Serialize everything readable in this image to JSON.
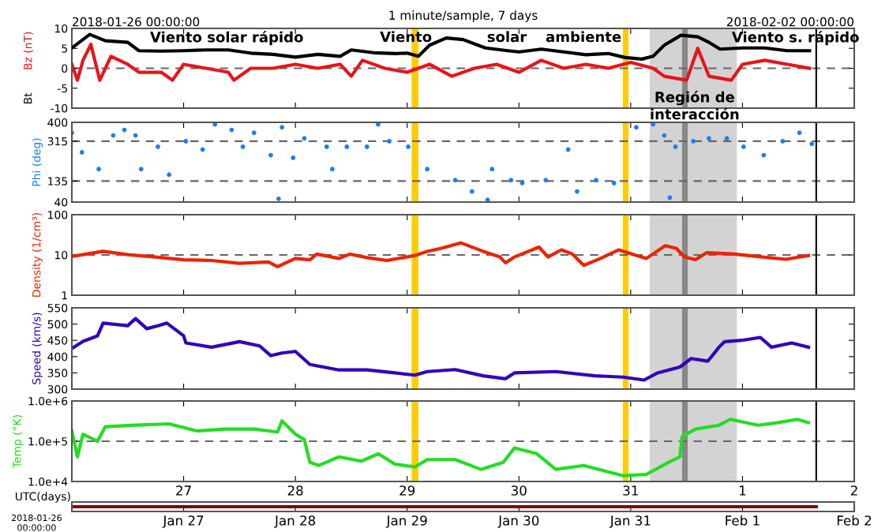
{
  "chart_data": [
    {
      "type": "line",
      "title": "1 minute/sample, 7 days",
      "xlim": [
        "2018-01-26",
        "2018-02-02"
      ],
      "xticks": [
        "2018-01-26",
        "2018-01-27",
        "2018-01-28",
        "2018-01-29",
        "2018-01-30",
        "2018-01-31",
        "2018-02-01",
        "2018-02-02"
      ],
      "ylim": [
        -10,
        10
      ],
      "yticks": [
        -10,
        -5,
        0,
        5,
        10
      ],
      "tick_labels": "y",
      "grid": false,
      "series": [
        {
          "name": "Bz (nT)",
          "color": "#e8141a",
          "x": [
            "2018-01-26T00:00",
            "2018-01-26T01:12",
            "2018-01-26T02:24",
            "2018-01-26T04:05",
            "2018-01-26T06:00",
            "2018-01-26T08:24",
            "2018-01-26T12:00",
            "2018-01-26T14:24",
            "2018-01-26T19:12",
            "2018-01-26T21:36",
            "2018-01-27T00:00",
            "2018-01-27T04:48",
            "2018-01-27T09:36",
            "2018-01-27T10:48",
            "2018-01-27T14:24",
            "2018-01-27T19:12",
            "2018-01-28T00:00",
            "2018-01-28T04:48",
            "2018-01-28T09:36",
            "2018-01-28T12:00",
            "2018-01-28T14:24",
            "2018-01-28T19:12",
            "2018-01-29T00:00",
            "2018-01-29T04:48",
            "2018-01-29T09:36",
            "2018-01-29T14:24",
            "2018-01-29T19:12",
            "2018-01-30T00:00",
            "2018-01-30T04:48",
            "2018-01-30T09:36",
            "2018-01-30T14:24",
            "2018-01-30T19:12",
            "2018-01-31T00:00",
            "2018-01-31T04:48",
            "2018-01-31T07:12",
            "2018-01-31T12:00",
            "2018-01-31T14:24",
            "2018-01-31T16:48",
            "2018-01-31T21:36",
            "2018-02-01T00:00",
            "2018-02-01T04:48",
            "2018-02-01T09:36",
            "2018-02-01T14:24"
          ],
          "values": [
            1,
            -3,
            2,
            6,
            -3,
            3,
            1,
            -1,
            -1,
            -3,
            1,
            0,
            -1,
            -3,
            0,
            0,
            1,
            0,
            1,
            -2,
            2,
            0,
            -1,
            1,
            -2,
            0,
            1,
            -1,
            2,
            0,
            1,
            0,
            1.5,
            0,
            -2,
            -3,
            5,
            -2,
            -3,
            1,
            2,
            1,
            0
          ]
        },
        {
          "name": "Bt",
          "color": "#000000",
          "x": [
            "2018-01-26T00:00",
            "2018-01-26T03:50",
            "2018-01-26T07:12",
            "2018-01-26T12:00",
            "2018-01-26T14:24",
            "2018-01-26T19:12",
            "2018-01-27T00:00",
            "2018-01-27T04:48",
            "2018-01-27T09:36",
            "2018-01-27T14:24",
            "2018-01-27T19:12",
            "2018-01-28T00:00",
            "2018-01-28T04:48",
            "2018-01-28T09:36",
            "2018-01-28T12:00",
            "2018-01-28T16:48",
            "2018-01-28T21:36",
            "2018-01-29T00:00",
            "2018-01-29T02:24",
            "2018-01-29T04:48",
            "2018-01-29T08:24",
            "2018-01-29T12:00",
            "2018-01-29T16:48",
            "2018-01-29T21:36",
            "2018-01-30T00:00",
            "2018-01-30T04:48",
            "2018-01-30T09:36",
            "2018-01-30T14:24",
            "2018-01-30T19:12",
            "2018-01-30T22:48",
            "2018-01-31T02:24",
            "2018-01-31T04:48",
            "2018-01-31T07:12",
            "2018-01-31T10:48",
            "2018-01-31T14:24",
            "2018-01-31T16:48",
            "2018-01-31T19:12",
            "2018-02-01T00:00",
            "2018-02-01T04:48",
            "2018-02-01T09:36",
            "2018-02-01T14:24"
          ],
          "values": [
            5.1,
            8.5,
            6.9,
            6.5,
            4.4,
            4.3,
            4.4,
            4.6,
            4.6,
            3.8,
            3.5,
            2.8,
            3.5,
            3.0,
            4.6,
            3.9,
            3.7,
            3.8,
            3.0,
            5.8,
            7.6,
            7.2,
            5.1,
            4.4,
            4.1,
            4.8,
            4.1,
            3.4,
            3.7,
            2.7,
            2.3,
            3.0,
            5.8,
            8.3,
            7.9,
            6.5,
            4.8,
            5.1,
            5.1,
            4.4,
            4.4
          ]
        }
      ],
      "ref_lines": [
        {
          "axis": "y",
          "value": 0,
          "color": "#666666",
          "line_style": "dashed"
        },
        {
          "axis": "x",
          "value": "2018-02-01T15:50",
          "color": "#000000",
          "line_style": "solid"
        }
      ],
      "bands": [
        {
          "axis": "x",
          "from": "2018-01-29T00:58",
          "to": "2018-01-29T02:24",
          "color": "#ffcc00"
        },
        {
          "axis": "x",
          "from": "2018-01-30T22:19",
          "to": "2018-01-30T23:31",
          "color": "#ffcc00"
        },
        {
          "axis": "x",
          "from": "2018-01-31T04:05",
          "to": "2018-01-31T22:48",
          "color": "#d3d3d3"
        },
        {
          "axis": "x",
          "from": "2018-01-31T11:02",
          "to": "2018-01-31T12:14",
          "color": "#888888"
        }
      ],
      "annotations": [
        "2018-01-26 00:00:00",
        "2018-02-02 00:00:00",
        "Viento solar rápido",
        "Viento",
        "solar",
        "ambiente",
        "Viento s. rápido",
        "Región de\ninteracción"
      ]
    },
    {
      "type": "scatter",
      "ylabel": "Phi (deg)",
      "xlim": [
        "2018-01-26",
        "2018-02-02"
      ],
      "xticks": [
        "2018-01-26",
        "2018-01-27",
        "2018-01-28",
        "2018-01-29",
        "2018-01-30",
        "2018-01-31",
        "2018-02-01",
        "2018-02-02"
      ],
      "ylim": [
        40,
        400
      ],
      "yticks": [
        40,
        135,
        315,
        400
      ],
      "tick_labels": "y",
      "grid": false,
      "series": [
        {
          "color": "#1a7fef",
          "x": [
            "2018-01-26T00:00",
            "2018-01-26T02:10",
            "2018-01-26T05:46",
            "2018-01-26T08:53",
            "2018-01-26T11:17",
            "2018-01-26T13:41",
            "2018-01-26T14:53",
            "2018-01-26T18:29",
            "2018-01-26T20:53",
            "2018-01-27T00:29",
            "2018-01-27T04:05",
            "2018-01-27T06:43",
            "2018-01-27T10:19",
            "2018-01-27T12:43",
            "2018-01-27T15:07",
            "2018-01-27T18:43",
            "2018-01-27T20:24",
            "2018-01-27T21:07",
            "2018-01-27T23:31",
            "2018-01-28T01:55",
            "2018-01-28T06:43",
            "2018-01-28T07:55",
            "2018-01-28T11:02",
            "2018-01-28T15:22",
            "2018-01-28T17:46",
            "2018-01-28T20:10",
            "2018-01-29T00:14",
            "2018-01-29T04:19",
            "2018-01-29T10:19",
            "2018-01-29T13:55",
            "2018-01-29T17:17",
            "2018-01-29T18:14",
            "2018-01-29T22:19",
            "2018-01-30T00:43",
            "2018-01-30T05:46",
            "2018-01-30T10:34",
            "2018-01-30T12:29",
            "2018-01-30T16:34",
            "2018-01-30T20:24",
            "2018-01-31T01:12",
            "2018-01-31T04:48",
            "2018-01-31T07:12",
            "2018-01-31T08:24",
            "2018-01-31T09:36",
            "2018-01-31T13:26",
            "2018-01-31T16:48",
            "2018-01-31T20:38",
            "2018-02-01T00:14",
            "2018-02-01T04:34",
            "2018-02-01T08:38",
            "2018-02-01T12:14",
            "2018-02-01T14:53"
          ],
          "values": [
            353,
            265,
            189,
            341,
            366,
            341,
            189,
            290,
            164,
            315,
            277,
            391,
            366,
            290,
            353,
            252,
            55,
            378,
            240,
            328,
            290,
            189,
            290,
            290,
            391,
            315,
            290,
            189,
            139,
            88,
            50,
            189,
            139,
            126,
            139,
            277,
            88,
            139,
            126,
            378,
            391,
            341,
            60,
            290,
            315,
            328,
            328,
            290,
            252,
            315,
            353,
            303
          ]
        }
      ],
      "ref_lines": [
        {
          "axis": "y",
          "value": 135,
          "color": "#666666",
          "line_style": "dashed"
        },
        {
          "axis": "y",
          "value": 315,
          "color": "#666666",
          "line_style": "dashed"
        },
        {
          "axis": "x",
          "value": "2018-02-01T15:50",
          "color": "#000000",
          "line_style": "solid"
        }
      ],
      "bands": [
        {
          "axis": "x",
          "from": "2018-01-29T00:58",
          "to": "2018-01-29T02:24",
          "color": "#ffcc00"
        },
        {
          "axis": "x",
          "from": "2018-01-30T22:19",
          "to": "2018-01-30T23:31",
          "color": "#ffcc00"
        },
        {
          "axis": "x",
          "from": "2018-01-31T04:05",
          "to": "2018-01-31T22:48",
          "color": "#d3d3d3"
        },
        {
          "axis": "x",
          "from": "2018-01-31T11:02",
          "to": "2018-01-31T12:14",
          "color": "#888888"
        }
      ]
    },
    {
      "type": "line",
      "ylabel": "Density (1/cm³)",
      "log": "y",
      "xlim": [
        "2018-01-26",
        "2018-02-02"
      ],
      "xticks": [
        "2018-01-26",
        "2018-01-27",
        "2018-01-28",
        "2018-01-29",
        "2018-01-30",
        "2018-01-31",
        "2018-02-01",
        "2018-02-02"
      ],
      "ylim": [
        1,
        100
      ],
      "yticks": [
        1,
        10,
        100
      ],
      "tick_labels": "y",
      "grid": false,
      "series": [
        {
          "color": "#ee2200",
          "x": [
            "2018-01-26T00:00",
            "2018-01-26T06:43",
            "2018-01-26T12:00",
            "2018-01-26T18:00",
            "2018-01-27T00:00",
            "2018-01-27T06:00",
            "2018-01-27T12:00",
            "2018-01-27T18:14",
            "2018-01-27T20:10",
            "2018-01-28T00:00",
            "2018-01-28T03:07",
            "2018-01-28T04:34",
            "2018-01-28T09:22",
            "2018-01-28T11:46",
            "2018-01-28T15:22",
            "2018-01-28T19:41",
            "2018-01-29T01:41",
            "2018-01-29T04:19",
            "2018-01-29T07:12",
            "2018-01-29T11:31",
            "2018-01-29T16:19",
            "2018-01-29T19:55",
            "2018-01-29T21:07",
            "2018-01-29T23:02",
            "2018-01-30T04:19",
            "2018-01-30T06:14",
            "2018-01-30T09:07",
            "2018-01-30T11:31",
            "2018-01-30T13:55",
            "2018-01-30T17:31",
            "2018-01-30T21:22",
            "2018-01-31T03:22",
            "2018-01-31T07:26",
            "2018-01-31T09:50",
            "2018-01-31T11:31",
            "2018-01-31T13:55",
            "2018-01-31T16:19",
            "2018-01-31T22:19",
            "2018-02-01T04:19",
            "2018-02-01T09:22",
            "2018-02-01T14:10"
          ],
          "values": [
            9.2,
            12.3,
            10.2,
            8.9,
            7.6,
            7.3,
            6.2,
            6.7,
            5.1,
            8.2,
            7.6,
            10.5,
            8.2,
            10.5,
            8.6,
            7.3,
            9.7,
            12.3,
            14.5,
            20,
            12.3,
            8.9,
            6.4,
            8.9,
            15.7,
            8.9,
            13.4,
            10.5,
            5.5,
            8.2,
            13.4,
            8.2,
            17,
            14.5,
            8.9,
            7.6,
            11.4,
            10.5,
            8.9,
            7.8,
            9.7
          ]
        }
      ],
      "ref_lines": [
        {
          "axis": "y",
          "value": 10,
          "color": "#666666",
          "line_style": "dashed"
        },
        {
          "axis": "x",
          "value": "2018-02-01T15:50",
          "color": "#000000",
          "line_style": "solid"
        }
      ],
      "bands": [
        {
          "axis": "x",
          "from": "2018-01-29T00:58",
          "to": "2018-01-29T02:24",
          "color": "#ffcc00"
        },
        {
          "axis": "x",
          "from": "2018-01-30T22:19",
          "to": "2018-01-30T23:31",
          "color": "#ffcc00"
        },
        {
          "axis": "x",
          "from": "2018-01-31T04:05",
          "to": "2018-01-31T22:48",
          "color": "#d3d3d3"
        },
        {
          "axis": "x",
          "from": "2018-01-31T11:02",
          "to": "2018-01-31T12:14",
          "color": "#888888"
        }
      ]
    },
    {
      "type": "line",
      "ylabel": "Speed (km/s)",
      "xlim": [
        "2018-01-26",
        "2018-02-02"
      ],
      "xticks": [
        "2018-01-26",
        "2018-01-27",
        "2018-01-28",
        "2018-01-29",
        "2018-01-30",
        "2018-01-31",
        "2018-02-01",
        "2018-02-02"
      ],
      "ylim": [
        300,
        550
      ],
      "yticks": [
        300,
        350,
        400,
        450,
        500,
        550
      ],
      "tick_labels": "y",
      "grid": false,
      "series": [
        {
          "color": "#3300bb",
          "x": [
            "2018-01-26T00:00",
            "2018-01-26T02:24",
            "2018-01-26T05:31",
            "2018-01-26T06:43",
            "2018-01-26T12:00",
            "2018-01-26T13:41",
            "2018-01-26T16:05",
            "2018-01-26T18:29",
            "2018-01-26T20:24",
            "2018-01-27T00:00",
            "2018-01-27T00:29",
            "2018-01-27T06:00",
            "2018-01-27T12:00",
            "2018-01-27T16:19",
            "2018-01-27T18:43",
            "2018-01-27T21:07",
            "2018-01-28T00:00",
            "2018-01-28T03:07",
            "2018-01-28T09:22",
            "2018-01-28T15:22",
            "2018-01-28T21:22",
            "2018-01-29T01:41",
            "2018-01-29T04:19",
            "2018-01-29T10:19",
            "2018-01-29T16:19",
            "2018-01-29T21:07",
            "2018-01-29T23:02",
            "2018-01-30T07:55",
            "2018-01-30T16:19",
            "2018-01-30T22:19",
            "2018-01-31T02:53",
            "2018-01-31T05:46",
            "2018-01-31T10:34",
            "2018-01-31T12:58",
            "2018-01-31T16:34",
            "2018-01-31T18:58",
            "2018-01-31T20:10",
            "2018-01-31T23:46",
            "2018-02-01T03:50",
            "2018-02-01T06:14",
            "2018-02-01T10:34",
            "2018-02-01T14:10"
          ],
          "values": [
            425,
            447,
            464,
            503,
            495,
            517,
            486,
            495,
            503,
            464,
            442,
            429,
            446,
            433,
            403,
            411,
            416,
            376,
            359,
            359,
            350,
            343,
            354,
            360,
            341,
            332,
            350,
            354,
            341,
            337,
            328,
            350,
            368,
            394,
            386,
            429,
            446,
            450,
            459,
            429,
            442,
            429
          ]
        }
      ],
      "ref_lines": [
        {
          "axis": "x",
          "value": "2018-02-01T15:50",
          "color": "#000000",
          "line_style": "solid"
        }
      ],
      "bands": [
        {
          "axis": "x",
          "from": "2018-01-29T00:58",
          "to": "2018-01-29T02:24",
          "color": "#ffcc00"
        },
        {
          "axis": "x",
          "from": "2018-01-30T22:19",
          "to": "2018-01-30T23:31",
          "color": "#ffcc00"
        },
        {
          "axis": "x",
          "from": "2018-01-31T04:05",
          "to": "2018-01-31T22:48",
          "color": "#d3d3d3"
        },
        {
          "axis": "x",
          "from": "2018-01-31T11:02",
          "to": "2018-01-31T12:14",
          "color": "#888888"
        }
      ]
    },
    {
      "type": "line",
      "ylabel": "Temp (°K)",
      "xlabel": "UTC(days)",
      "log": "y",
      "xlim": [
        "2018-01-26",
        "2018-02-02"
      ],
      "xticks": [
        {
          "value": "2018-01-26",
          "label": null
        },
        {
          "value": "2018-01-27",
          "label": "27"
        },
        {
          "value": "2018-01-28",
          "label": "28"
        },
        {
          "value": "2018-01-29",
          "label": "29"
        },
        {
          "value": "2018-01-30",
          "label": "30"
        },
        {
          "value": "2018-01-31",
          "label": "31"
        },
        {
          "value": "2018-02-01",
          "label": "1"
        },
        {
          "value": "2018-02-02",
          "label": "2"
        }
      ],
      "ylim": [
        10000,
        1000000
      ],
      "yticks": [
        {
          "value": 10000,
          "label": "1.0e+4"
        },
        {
          "value": 100000,
          "label": "1.0e+5"
        },
        {
          "value": 1000000,
          "label": "1.0e+6"
        }
      ],
      "grid": false,
      "series": [
        {
          "color": "#22dd22",
          "x": [
            "2018-01-26T00:00",
            "2018-01-26T01:12",
            "2018-01-26T02:24",
            "2018-01-26T05:31",
            "2018-01-26T07:12",
            "2018-01-26T13:41",
            "2018-01-26T20:53",
            "2018-01-27T02:53",
            "2018-01-27T08:53",
            "2018-01-27T15:07",
            "2018-01-27T20:10",
            "2018-01-27T21:07",
            "2018-01-28T00:00",
            "2018-01-28T01:55",
            "2018-01-28T03:07",
            "2018-01-28T05:02",
            "2018-01-28T09:22",
            "2018-01-28T14:10",
            "2018-01-28T17:46",
            "2018-01-28T21:22",
            "2018-01-29T01:41",
            "2018-01-29T04:19",
            "2018-01-29T10:19",
            "2018-01-29T15:50",
            "2018-01-29T20:38",
            "2018-01-29T23:02",
            "2018-01-30T03:50",
            "2018-01-30T07:55",
            "2018-01-30T13:55",
            "2018-01-30T19:26",
            "2018-01-30T22:19",
            "2018-01-31T03:22",
            "2018-01-31T08:10",
            "2018-01-31T10:34",
            "2018-01-31T11:02",
            "2018-01-31T13:55",
            "2018-01-31T18:58",
            "2018-01-31T21:22",
            "2018-02-01T03:22",
            "2018-02-01T07:41",
            "2018-02-01T11:46",
            "2018-02-01T14:10"
          ],
          "values": [
            180000,
            41000,
            150000,
            100000,
            230000,
            250000,
            270000,
            180000,
            200000,
            200000,
            170000,
            320000,
            150000,
            110000,
            30000,
            25000,
            41000,
            32000,
            49000,
            27000,
            23000,
            35000,
            35000,
            20000,
            30000,
            68000,
            49000,
            20000,
            25000,
            17000,
            14000,
            15000,
            30000,
            41000,
            130000,
            200000,
            250000,
            350000,
            250000,
            290000,
            350000,
            290000
          ]
        }
      ],
      "ref_lines": [
        {
          "axis": "y",
          "value": 100000,
          "color": "#666666",
          "line_style": "dashed"
        },
        {
          "axis": "x",
          "value": "2018-02-01T15:50",
          "color": "#000000",
          "line_style": "solid"
        }
      ],
      "bands": [
        {
          "axis": "x",
          "from": "2018-01-29T00:58",
          "to": "2018-01-29T02:24",
          "color": "#ffcc00"
        },
        {
          "axis": "x",
          "from": "2018-01-30T22:19",
          "to": "2018-01-30T23:31",
          "color": "#ffcc00"
        },
        {
          "axis": "x",
          "from": "2018-01-31T04:05",
          "to": "2018-01-31T22:48",
          "color": "#d3d3d3"
        },
        {
          "axis": "x",
          "from": "2018-01-31T11:02",
          "to": "2018-01-31T12:14",
          "color": "#888888"
        }
      ]
    },
    {
      "type": "other",
      "categories": [
        null,
        "Jan 27",
        "Jan 28",
        "Jan 29",
        "Jan 30",
        "Jan 31",
        "Feb 1",
        "Feb 2"
      ],
      "annotations": [
        "2018-01-26\n00:00:00"
      ]
    }
  ]
}
